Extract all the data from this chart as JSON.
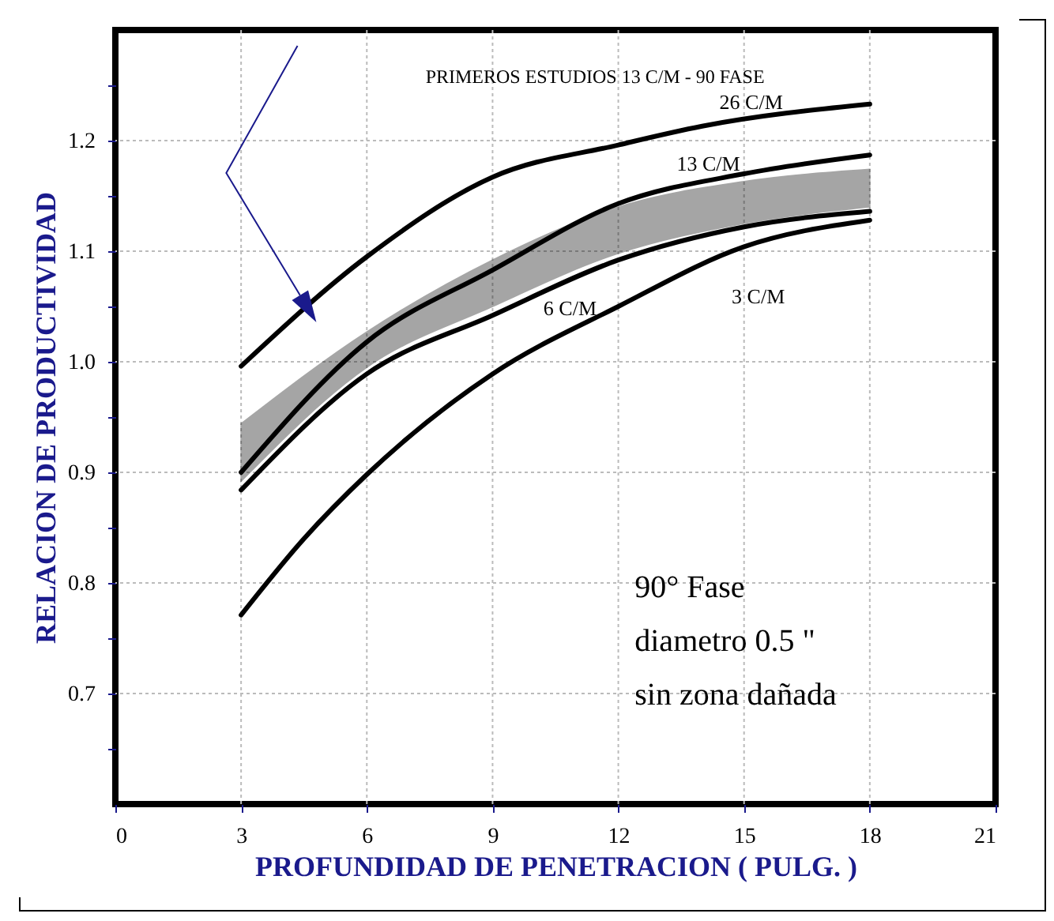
{
  "chart_data": {
    "type": "line",
    "xlabel": "PROFUNDIDAD DE PENETRACION ( PULG. )",
    "ylabel": "RELACION DE PRODUCTIVIDAD",
    "xlim": [
      0,
      21
    ],
    "xticks": [
      0,
      3,
      6,
      9,
      12,
      15,
      18,
      21
    ],
    "ylim": [
      0.6,
      1.3
    ],
    "yticks": [
      {
        "value": 0.65,
        "label": null
      },
      0.7,
      {
        "value": 0.75,
        "label": null
      },
      0.8,
      {
        "value": 0.85,
        "label": null
      },
      0.9,
      {
        "value": 0.95,
        "label": null
      },
      {
        "value": 1.0,
        "label": "1.0"
      },
      {
        "value": 1.05,
        "label": null
      },
      1.1,
      {
        "value": 1.15,
        "label": null
      },
      1.2,
      {
        "value": 1.25,
        "label": null
      }
    ],
    "grid": true,
    "line_style": "solid",
    "marker": "none",
    "series": [
      {
        "name": "26 C/M",
        "color": "#000000",
        "x": [
          3,
          6,
          9,
          12,
          14,
          18
        ],
        "values": [
          0.996,
          1.095,
          1.167,
          1.196,
          1.213,
          1.233
        ]
      },
      {
        "name": "13 C/M",
        "color": "#000000",
        "x": [
          3,
          6,
          9,
          12,
          15,
          18
        ],
        "values": [
          0.9,
          1.018,
          1.083,
          1.143,
          1.17,
          1.187
        ],
        "lower": [
          0.892,
          0.995,
          1.05,
          1.098,
          1.125,
          1.14
        ],
        "upper": [
          0.944,
          1.027,
          1.092,
          1.14,
          1.163,
          1.174
        ]
      },
      {
        "name": "6 C/M",
        "color": "#000000",
        "x": [
          3,
          6,
          9,
          12,
          15,
          18
        ],
        "values": [
          0.884,
          0.989,
          1.042,
          1.092,
          1.122,
          1.136
        ]
      },
      {
        "name": "3 C/M",
        "color": "#000000",
        "x": [
          3,
          4.5,
          6,
          9,
          12,
          15,
          18
        ],
        "values": [
          0.771,
          0.84,
          0.898,
          0.989,
          1.05,
          1.104,
          1.128
        ]
      }
    ],
    "annotations": [
      "PRIMEROS ESTUDIOS 13 C/M - 90  FASE",
      "90° Fase\ndiametro 0.5 \"\nsin zona dañada"
    ]
  }
}
